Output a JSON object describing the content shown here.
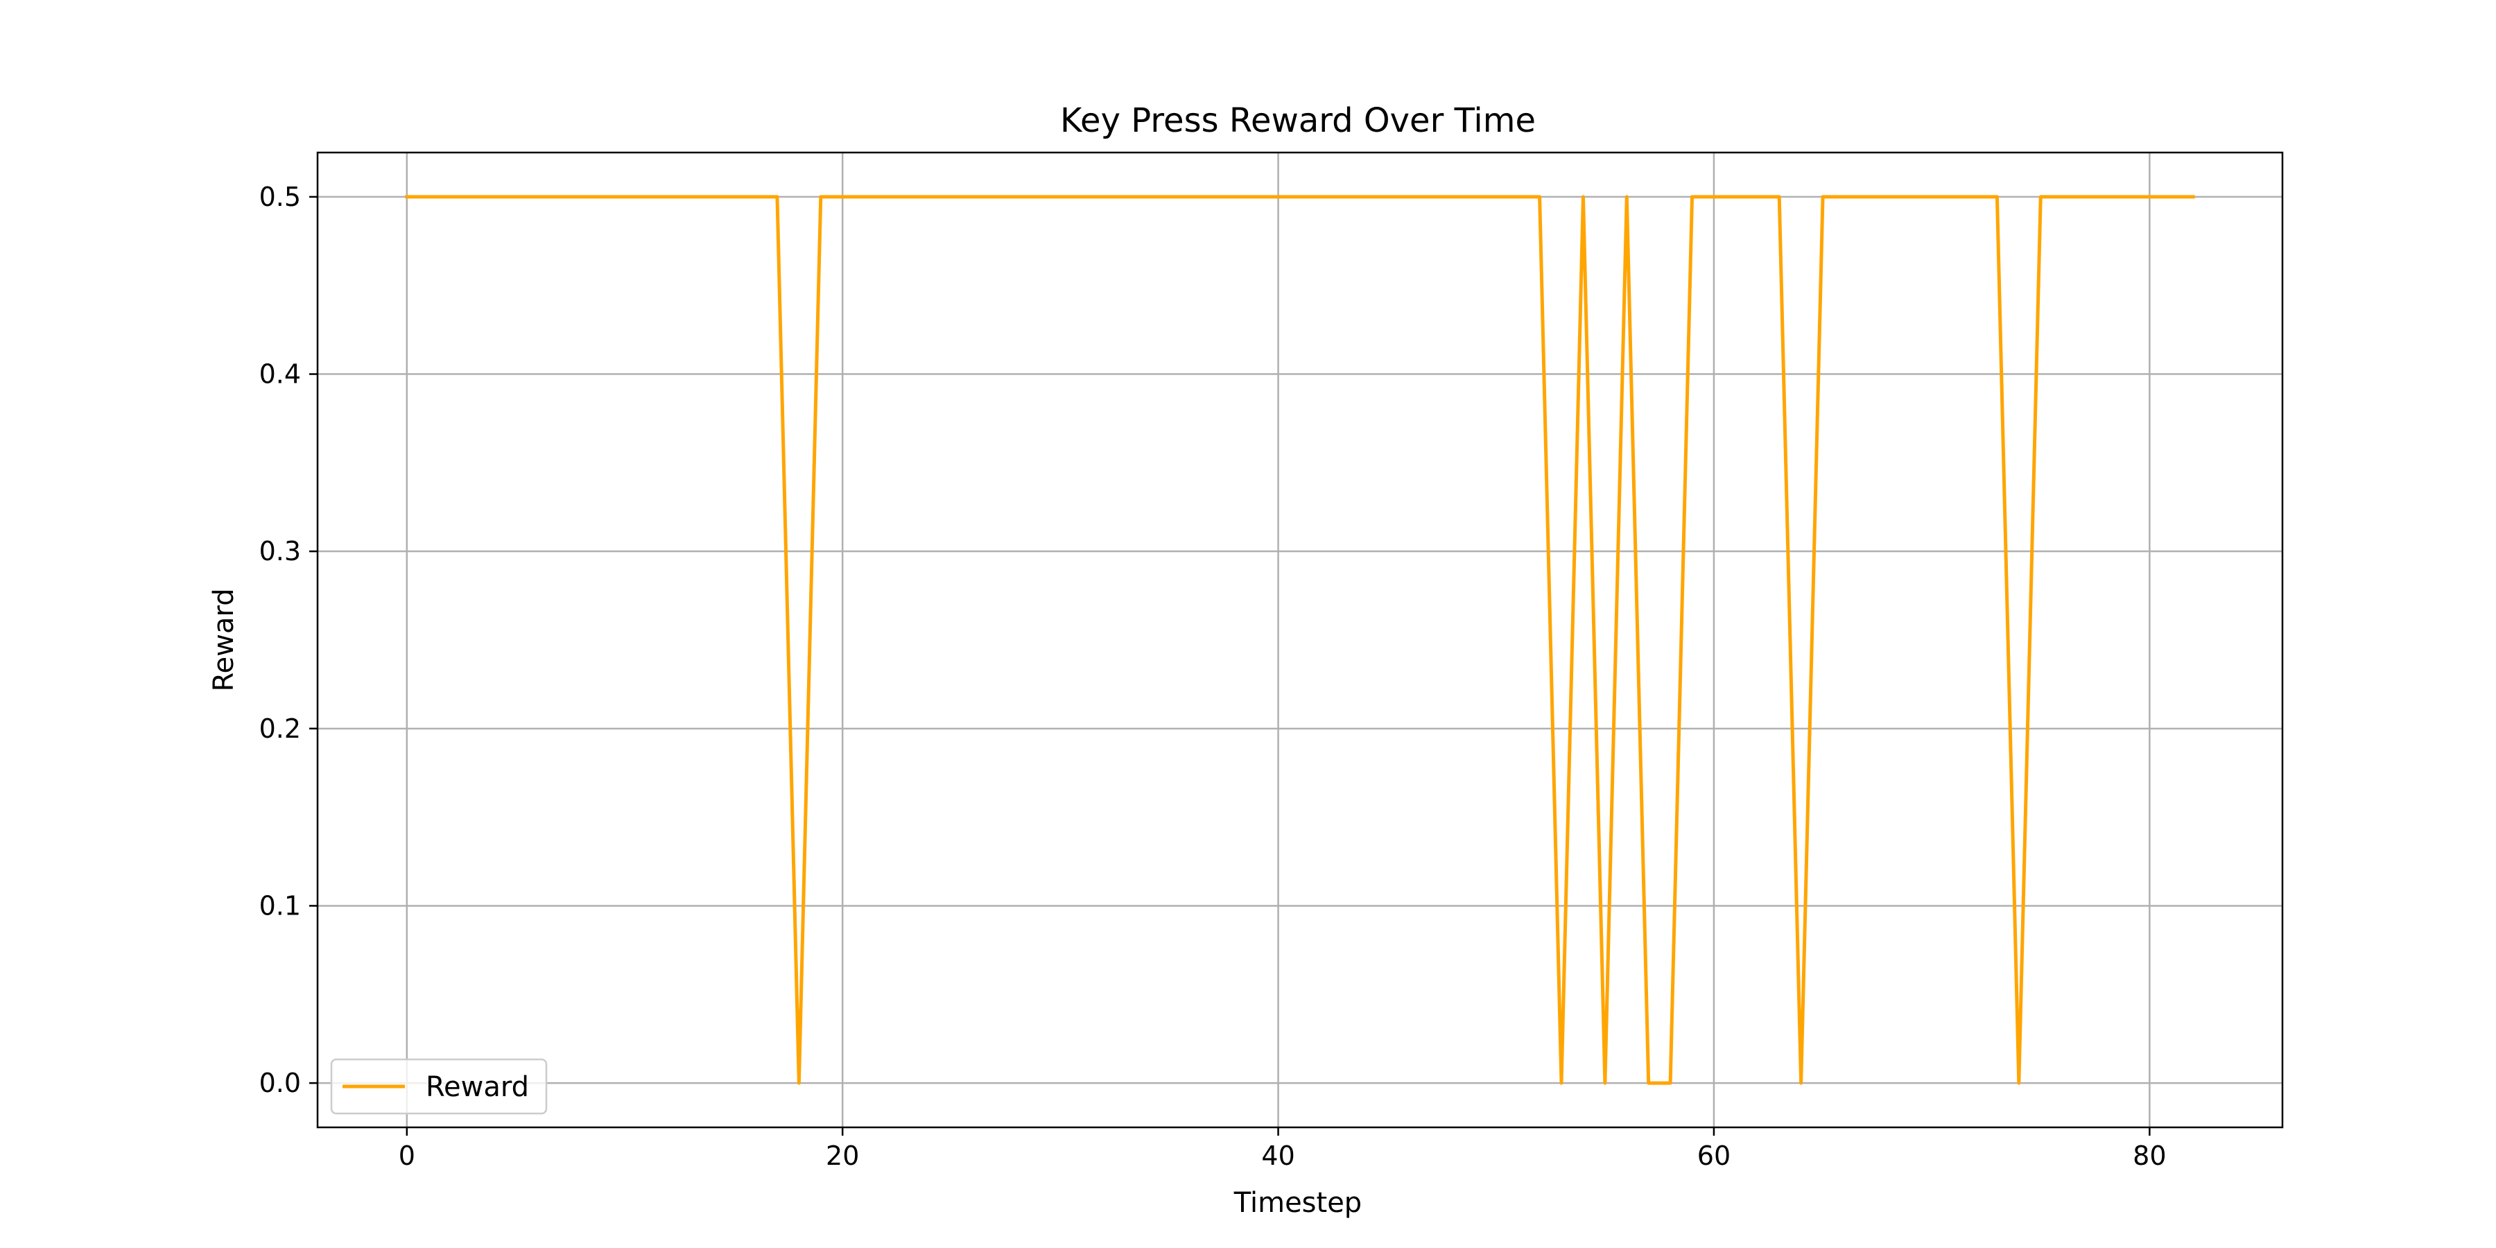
{
  "chart_data": {
    "type": "line",
    "title": "Key Press Reward Over Time",
    "xlabel": "Timestep",
    "ylabel": "Reward",
    "xlim": [
      -4.1,
      86.1
    ],
    "ylim": [
      -0.025,
      0.525
    ],
    "xticks": [
      0,
      20,
      40,
      60,
      80
    ],
    "yticks": [
      0.0,
      0.1,
      0.2,
      0.3,
      0.4,
      0.5
    ],
    "ytick_labels": [
      "0.0",
      "0.1",
      "0.2",
      "0.3",
      "0.4",
      "0.5"
    ],
    "grid": true,
    "legend_position": "lower-left",
    "colors": {
      "series": "#ffa500",
      "grid": "#b0b0b0",
      "axes": "#000000"
    },
    "series": [
      {
        "name": "Reward",
        "x": [
          0,
          1,
          2,
          3,
          4,
          5,
          6,
          7,
          8,
          9,
          10,
          11,
          12,
          13,
          14,
          15,
          16,
          17,
          18,
          19,
          20,
          21,
          22,
          23,
          24,
          25,
          26,
          27,
          28,
          29,
          30,
          31,
          32,
          33,
          34,
          35,
          36,
          37,
          38,
          39,
          40,
          41,
          42,
          43,
          44,
          45,
          46,
          47,
          48,
          49,
          50,
          51,
          52,
          53,
          54,
          55,
          56,
          57,
          58,
          59,
          60,
          61,
          62,
          63,
          64,
          65,
          66,
          67,
          68,
          69,
          70,
          71,
          72,
          73,
          74,
          75,
          76,
          77,
          78,
          79,
          80,
          81,
          82
        ],
        "values": [
          0.5,
          0.5,
          0.5,
          0.5,
          0.5,
          0.5,
          0.5,
          0.5,
          0.5,
          0.5,
          0.5,
          0.5,
          0.5,
          0.5,
          0.5,
          0.5,
          0.5,
          0.5,
          0.0,
          0.5,
          0.5,
          0.5,
          0.5,
          0.5,
          0.5,
          0.5,
          0.5,
          0.5,
          0.5,
          0.5,
          0.5,
          0.5,
          0.5,
          0.5,
          0.5,
          0.5,
          0.5,
          0.5,
          0.5,
          0.5,
          0.5,
          0.5,
          0.5,
          0.5,
          0.5,
          0.5,
          0.5,
          0.5,
          0.5,
          0.5,
          0.5,
          0.5,
          0.5,
          0.0,
          0.5,
          0.0,
          0.5,
          0.0,
          0.0,
          0.5,
          0.5,
          0.5,
          0.5,
          0.5,
          0.0,
          0.5,
          0.5,
          0.5,
          0.5,
          0.5,
          0.5,
          0.5,
          0.5,
          0.5,
          0.0,
          0.5,
          0.5,
          0.5,
          0.5,
          0.5,
          0.5,
          0.5,
          0.5
        ]
      }
    ]
  }
}
